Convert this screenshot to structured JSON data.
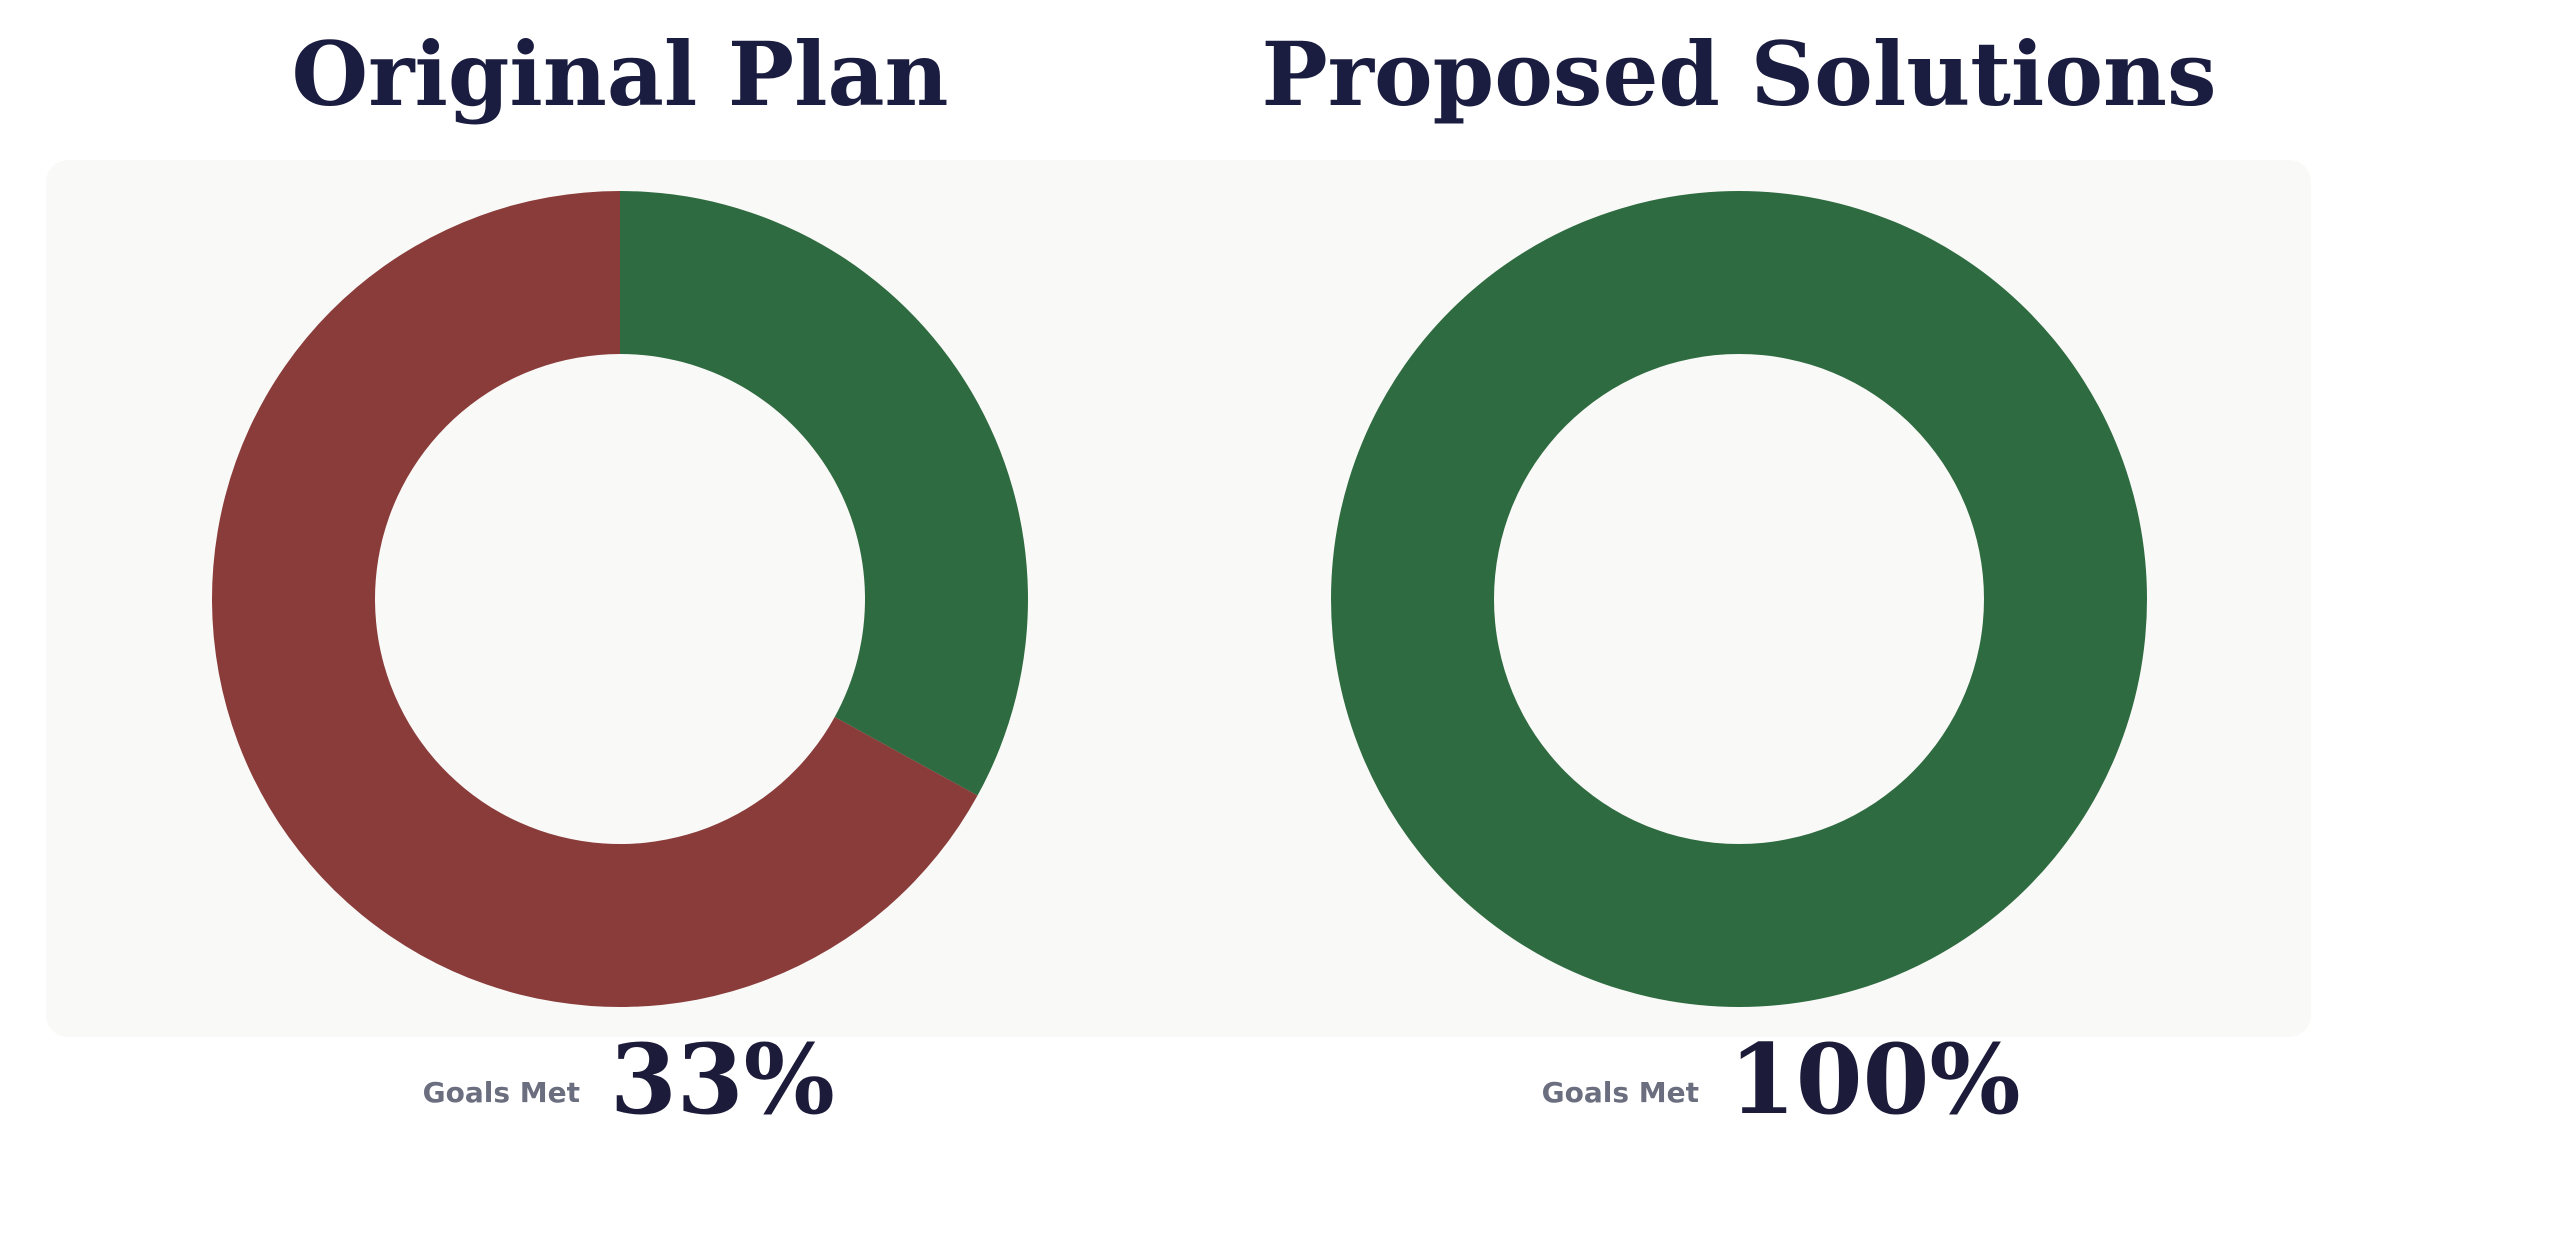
{
  "chart_data": [
    {
      "type": "pie",
      "title": "Original Plan",
      "label": "Goals Met",
      "donut": true,
      "values": [
        33,
        67
      ],
      "value_labels": [
        "33%",
        null
      ],
      "colors": [
        "#2f6b40",
        "#8a3c3a"
      ]
    },
    {
      "type": "pie",
      "title": "Proposed Solutions",
      "label": "Goals Met",
      "donut": true,
      "values": [
        100
      ],
      "value_labels": [
        "100%"
      ],
      "colors": [
        "#2f6b40"
      ]
    }
  ]
}
